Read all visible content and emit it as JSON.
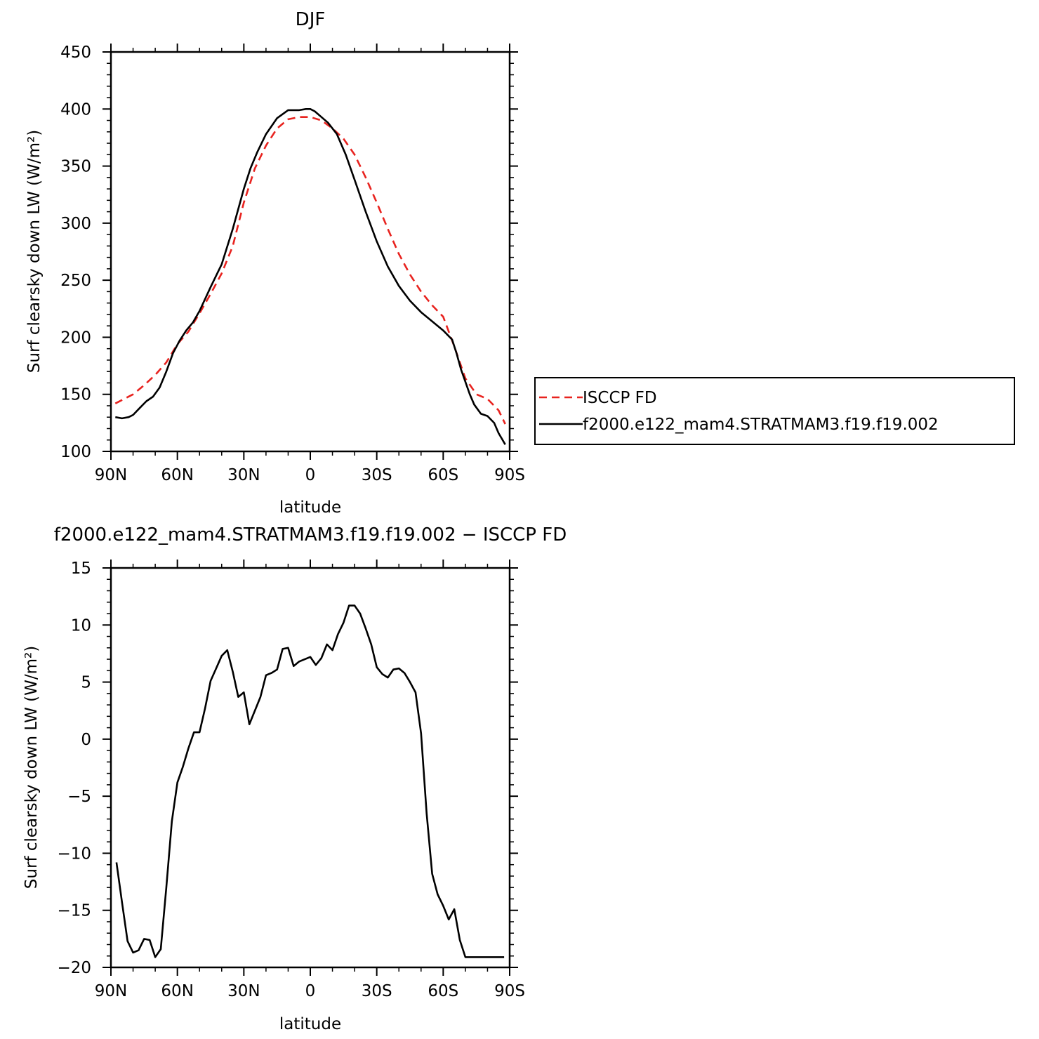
{
  "chart_data": [
    {
      "type": "line",
      "title": "DJF",
      "xlabel": "latitude",
      "ylabel": "Surf clearsky down LW (W/m²)",
      "xlim": [
        90,
        -90
      ],
      "ylim": [
        100,
        450
      ],
      "x_ticks": [
        {
          "value": 90,
          "label": "90N"
        },
        {
          "value": 60,
          "label": "60N"
        },
        {
          "value": 30,
          "label": "30N"
        },
        {
          "value": 0,
          "label": "0"
        },
        {
          "value": -30,
          "label": "30S"
        },
        {
          "value": -60,
          "label": "60S"
        },
        {
          "value": -90,
          "label": "90S"
        }
      ],
      "y_ticks": [
        {
          "value": 100,
          "label": "100"
        },
        {
          "value": 150,
          "label": "150"
        },
        {
          "value": 200,
          "label": "200"
        },
        {
          "value": 250,
          "label": "250"
        },
        {
          "value": 300,
          "label": "300"
        },
        {
          "value": 350,
          "label": "350"
        },
        {
          "value": 400,
          "label": "400"
        },
        {
          "value": 450,
          "label": "450"
        }
      ],
      "legend_position": "right",
      "series": [
        {
          "name": "ISCCP FD",
          "color": "#e8231f",
          "dash": "dashed",
          "x": [
            88,
            85,
            80,
            75,
            70,
            65,
            60,
            55,
            50,
            45,
            40,
            35,
            30,
            25,
            20,
            15,
            10,
            5,
            0,
            -5,
            -10,
            -15,
            -20,
            -25,
            -30,
            -35,
            -40,
            -45,
            -50,
            -55,
            -60,
            -65,
            -70,
            -75,
            -80,
            -85,
            -88
          ],
          "y": [
            142,
            145,
            150,
            158,
            167,
            178,
            194,
            205,
            221,
            238,
            256,
            280,
            318,
            348,
            368,
            383,
            391,
            393,
            393,
            390,
            383,
            374,
            360,
            340,
            318,
            295,
            273,
            255,
            240,
            228,
            218,
            192,
            164,
            150,
            146,
            136,
            124
          ]
        },
        {
          "name": "f2000.e122_mam4.STRATMAM3.f19.f19.002",
          "color": "#000000",
          "dash": "solid",
          "x": [
            88,
            85,
            82,
            80,
            77,
            74,
            71,
            68,
            65,
            62,
            59,
            56,
            53,
            50,
            45,
            40,
            35,
            30,
            27,
            24,
            20,
            15,
            10,
            5,
            2,
            0,
            -2,
            -5,
            -8,
            -12,
            -16,
            -20,
            -25,
            -30,
            -35,
            -40,
            -45,
            -50,
            -55,
            -60,
            -64,
            -66,
            -68,
            -70,
            -72,
            -74,
            -77,
            -80,
            -83,
            -85,
            -88
          ],
          "y": [
            130,
            129,
            130,
            132,
            138,
            144,
            148,
            156,
            170,
            186,
            197,
            206,
            213,
            223,
            244,
            264,
            295,
            330,
            348,
            362,
            378,
            392,
            399,
            399,
            400,
            400,
            398,
            393,
            388,
            378,
            360,
            338,
            310,
            284,
            262,
            245,
            232,
            222,
            214,
            206,
            198,
            186,
            172,
            161,
            150,
            141,
            133,
            131,
            125,
            116,
            106
          ]
        }
      ]
    },
    {
      "type": "line",
      "title": "f2000.e122_mam4.STRATMAM3.f19.f19.002 − ISCCP FD",
      "xlabel": "latitude",
      "ylabel": "Surf clearsky down LW (W/m²)",
      "xlim": [
        90,
        -90
      ],
      "ylim": [
        -20,
        15
      ],
      "x_ticks": [
        {
          "value": 90,
          "label": "90N"
        },
        {
          "value": 60,
          "label": "60N"
        },
        {
          "value": 30,
          "label": "30N"
        },
        {
          "value": 0,
          "label": "0"
        },
        {
          "value": -30,
          "label": "30S"
        },
        {
          "value": -60,
          "label": "60S"
        },
        {
          "value": -90,
          "label": "90S"
        }
      ],
      "y_ticks": [
        {
          "value": -20,
          "label": "−20"
        },
        {
          "value": -15,
          "label": "−15"
        },
        {
          "value": -10,
          "label": "−10"
        },
        {
          "value": -5,
          "label": "−5"
        },
        {
          "value": 0,
          "label": "0"
        },
        {
          "value": 5,
          "label": "5"
        },
        {
          "value": 10,
          "label": "10"
        },
        {
          "value": 15,
          "label": "15"
        }
      ],
      "series": [
        {
          "color": "#000000",
          "dash": "solid",
          "x": [
            87.5,
            85,
            82.5,
            80,
            77.5,
            75,
            72.5,
            70,
            67.5,
            65,
            62.5,
            60,
            57.5,
            55,
            52.5,
            50,
            47.5,
            45,
            42.5,
            40,
            37.5,
            35,
            32.5,
            30,
            27.5,
            25,
            22.5,
            20,
            17.5,
            15,
            12.5,
            10,
            7.5,
            5,
            2.5,
            0,
            -2.5,
            -5,
            -7.5,
            -10,
            -12.5,
            -15,
            -17.5,
            -20,
            -22.5,
            -25,
            -27.5,
            -30,
            -32.5,
            -35,
            -37.5,
            -40,
            -42.5,
            -45,
            -47.5,
            -50,
            -52.5,
            -55,
            -57.5,
            -60,
            -62.5,
            -65,
            -67.5,
            -70,
            -72.5,
            -75,
            -77.5,
            -80,
            -82.5,
            -85,
            -87.5
          ],
          "y": [
            -10.8,
            -14.3,
            -17.7,
            -18.7,
            -18.5,
            -17.5,
            -17.6,
            -19.1,
            -18.4,
            -13,
            -7.2,
            -3.8,
            -2.4,
            -0.8,
            0.6,
            0.6,
            2.7,
            5.1,
            6.2,
            7.3,
            7.8,
            5.9,
            3.7,
            4.1,
            1.3,
            2.5,
            3.7,
            5.6,
            5.8,
            6.1,
            7.9,
            8,
            6.4,
            6.8,
            7,
            7.2,
            6.5,
            7.1,
            8.3,
            7.8,
            9.2,
            10.2,
            11.7,
            11.7,
            11,
            9.7,
            8.3,
            6.3,
            5.7,
            5.4,
            6.1,
            6.2,
            5.8,
            5,
            4.1,
            0.5,
            -6.5,
            -11.8,
            -13.6,
            -14.6,
            -15.8,
            -14.9,
            -17.6,
            -19.1,
            -19.1,
            -19.1,
            -19.1,
            -19.1,
            -19.1,
            -19.1,
            -19.1
          ]
        }
      ]
    }
  ]
}
